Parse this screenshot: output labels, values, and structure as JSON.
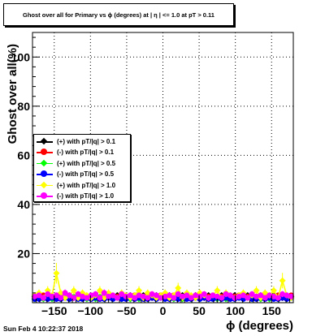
{
  "footer": {
    "date": "Sun Feb  4 10:22:37 2018"
  },
  "chart_data": {
    "type": "scatter",
    "title": "Ghost over all for Primary vs ϕ (degrees) at | η | <= 1.0 at pT > 0.11",
    "xlabel": "ϕ (degrees)",
    "ylabel": "Ghost over all(%)",
    "xlim": [
      -180,
      180
    ],
    "ylim": [
      0,
      110
    ],
    "grid": true,
    "legend_position": "left-middle",
    "xticks": [
      -150,
      -100,
      -50,
      0,
      50,
      100,
      150
    ],
    "xtick_labels": [
      "−150",
      "−100",
      "−50",
      "0",
      "50",
      "100",
      "150"
    ],
    "yticks": [
      20,
      40,
      60,
      80,
      100
    ],
    "ytick_labels": [
      "20",
      "40",
      "60",
      "80",
      "100"
    ],
    "x": [
      -177,
      -171,
      -165,
      -159,
      -153,
      -147,
      -141,
      -135,
      -129,
      -123,
      -117,
      -111,
      -105,
      -99,
      -93,
      -87,
      -81,
      -75,
      -69,
      -63,
      -57,
      -51,
      -45,
      -39,
      -33,
      -27,
      -21,
      -15,
      -9,
      -3,
      3,
      9,
      15,
      21,
      27,
      33,
      39,
      45,
      51,
      57,
      63,
      69,
      75,
      81,
      87,
      93,
      99,
      105,
      111,
      117,
      123,
      129,
      135,
      141,
      147,
      153,
      159,
      165,
      171,
      177
    ],
    "series": [
      {
        "name": "(+) with pT/|q| > 0.1",
        "color": "#000000",
        "values": [
          2.5,
          3,
          2,
          3.5,
          2.5,
          2,
          3,
          2.5,
          3,
          2,
          2.5,
          3,
          2,
          2.5,
          3,
          2,
          3,
          2.5,
          2,
          3,
          2.5,
          2,
          3,
          2.5,
          2,
          3,
          2.5,
          2,
          3,
          2.5,
          2,
          3,
          2.5,
          2,
          3,
          2.5,
          2,
          3,
          2.5,
          2,
          3,
          2.5,
          2,
          3,
          2.5,
          2,
          3,
          2.5,
          2,
          3,
          2.5,
          2,
          3,
          2.5,
          2,
          3,
          2.5,
          2,
          3,
          2.5
        ]
      },
      {
        "name": "(-) with pT/|q| > 0.1",
        "color": "#ff0000",
        "values": [
          2,
          2.5,
          3,
          2,
          2.5,
          3,
          2,
          2.5,
          3,
          2,
          2.5,
          3,
          2,
          2.5,
          3,
          2,
          2.5,
          3,
          2,
          2.5,
          3,
          2,
          2.5,
          3,
          2,
          2.5,
          3,
          2,
          2.5,
          3,
          2,
          2.5,
          3,
          2,
          2.5,
          3,
          2,
          2.5,
          3,
          2,
          2.5,
          3,
          2,
          2.5,
          3,
          2,
          2.5,
          3,
          2,
          2.5,
          3,
          2,
          2.5,
          3,
          2,
          2.5,
          3,
          2,
          2.5,
          3
        ]
      },
      {
        "name": "(+) with pT/|q| > 0.5",
        "color": "#00ff00",
        "values": [
          1.5,
          2,
          1.5,
          2.5,
          1.5,
          2,
          1.5,
          2,
          1.5,
          2.5,
          1.5,
          2,
          1.5,
          2,
          1.5,
          2.5,
          1.5,
          2,
          1.5,
          2,
          1.5,
          2.5,
          1.5,
          2,
          1.5,
          2,
          1.5,
          2.5,
          1.5,
          2,
          1.5,
          2,
          1.5,
          2.5,
          1.5,
          2,
          1.5,
          2,
          1.5,
          2.5,
          1.5,
          2,
          1.5,
          2,
          1.5,
          2.5,
          1.5,
          2,
          1.5,
          2,
          1.5,
          2.5,
          1.5,
          2,
          1.5,
          2,
          1.5,
          2.5,
          1.5,
          2
        ]
      },
      {
        "name": "(-) with pT/|q| > 0.5",
        "color": "#0000ff",
        "values": [
          1.5,
          1.5,
          2,
          1.5,
          2,
          1.5,
          1.5,
          2,
          1.5,
          2,
          1.5,
          1.5,
          2,
          1.5,
          2,
          1.5,
          1.5,
          2,
          1.5,
          2,
          1.5,
          1.5,
          2,
          1.5,
          2,
          1.5,
          1.5,
          2,
          1.5,
          2,
          1.5,
          1.5,
          2,
          1.5,
          2,
          1.5,
          1.5,
          2,
          1.5,
          2,
          1.5,
          1.5,
          2,
          1.5,
          2,
          1.5,
          1.5,
          2,
          1.5,
          2,
          1.5,
          1.5,
          2,
          1.5,
          2,
          1.5,
          1.5,
          2,
          1.5,
          2
        ]
      },
      {
        "name": "(+) with pT/|q| > 1.0",
        "color": "#ffff00",
        "values": [
          3,
          4,
          2,
          5,
          3,
          12,
          4,
          2,
          3,
          5,
          2,
          4,
          3,
          2,
          3,
          5,
          2,
          4,
          3,
          2,
          4,
          3,
          2,
          3,
          5,
          2,
          4,
          3,
          2,
          3,
          4,
          2,
          3,
          6,
          2,
          4,
          3,
          2,
          4,
          3,
          2,
          3,
          5,
          2,
          4,
          3,
          2,
          3,
          4,
          2,
          3,
          5,
          2,
          4,
          3,
          5,
          2,
          9,
          3,
          2
        ]
      },
      {
        "name": "(-) with pT/|q| > 1.0",
        "color": "#ff00ff",
        "values": [
          2.5,
          3,
          2,
          3.5,
          2.5,
          3,
          2,
          4,
          3,
          2,
          3.5,
          2.5,
          2,
          3,
          3.5,
          2,
          4,
          2.5,
          3,
          2,
          3.5,
          2.5,
          3,
          2,
          3,
          2.5,
          2,
          3.5,
          3,
          2,
          2.5,
          3,
          2,
          3.5,
          2.5,
          3,
          2,
          3,
          2.5,
          3.5,
          2,
          3,
          2.5,
          2,
          3.5,
          3,
          2,
          2.5,
          3,
          2,
          3.5,
          2.5,
          3,
          2,
          3,
          2.5,
          2,
          3.5,
          3,
          2.5
        ]
      }
    ]
  }
}
